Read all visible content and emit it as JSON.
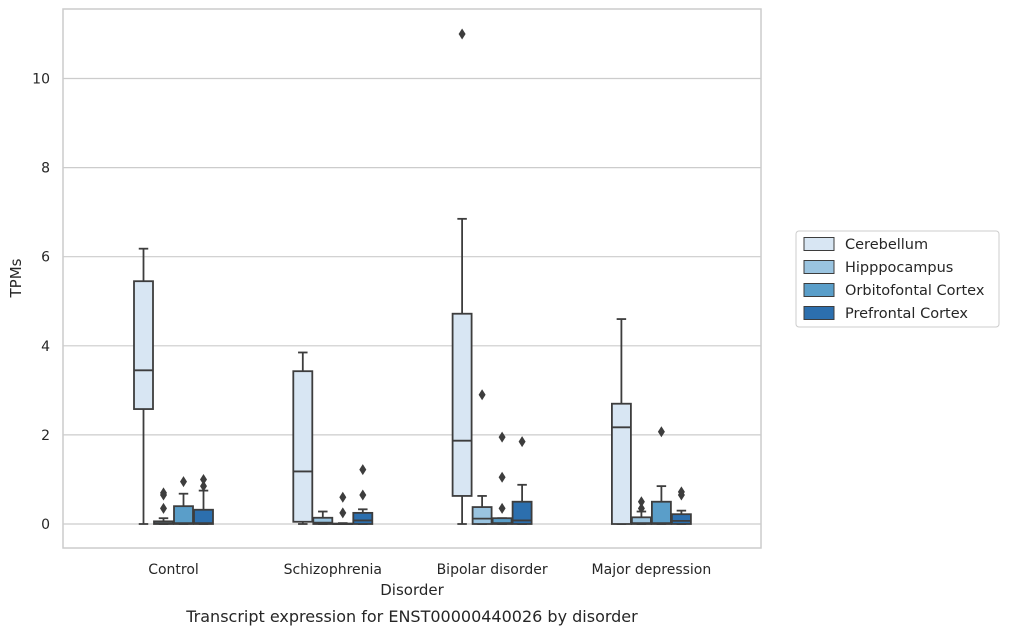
{
  "chart_data": {
    "type": "box",
    "xlabel": "Disorder",
    "ylabel": "TPMs",
    "caption": "Transcript expression for ENST00000440026 by disorder",
    "ylim": [
      -0.5,
      11.6
    ],
    "yticks": [
      0,
      2,
      4,
      6,
      8,
      10
    ],
    "grid": "horizontal",
    "legend_position": "right",
    "categories": [
      "Control",
      "Schizophrenia",
      "Bipolar disorder",
      "Major depression"
    ],
    "series": [
      {
        "name": "Cerebellum",
        "color": "#d8e6f3",
        "boxes": [
          {
            "whislo": 0.0,
            "q1": 2.58,
            "med": 3.45,
            "q3": 5.45,
            "whishi": 6.18,
            "fliers": []
          },
          {
            "whislo": 0.0,
            "q1": 0.05,
            "med": 1.18,
            "q3": 3.43,
            "whishi": 3.85,
            "fliers": []
          },
          {
            "whislo": 0.0,
            "q1": 0.63,
            "med": 1.87,
            "q3": 4.72,
            "whishi": 6.85,
            "fliers": [
              11.0
            ]
          },
          {
            "whislo": 0.0,
            "q1": 0.0,
            "med": 2.17,
            "q3": 2.7,
            "whishi": 4.6,
            "fliers": []
          }
        ]
      },
      {
        "name": "Hipppocampus",
        "color": "#9ac4e0",
        "boxes": [
          {
            "whislo": 0.0,
            "q1": 0.0,
            "med": 0.02,
            "q3": 0.06,
            "whishi": 0.13,
            "fliers": [
              0.35,
              0.65,
              0.7
            ]
          },
          {
            "whislo": 0.0,
            "q1": 0.0,
            "med": 0.03,
            "q3": 0.14,
            "whishi": 0.28,
            "fliers": []
          },
          {
            "whislo": 0.0,
            "q1": 0.0,
            "med": 0.12,
            "q3": 0.38,
            "whishi": 0.63,
            "fliers": [
              2.9
            ]
          },
          {
            "whislo": 0.0,
            "q1": 0.0,
            "med": 0.02,
            "q3": 0.15,
            "whishi": 0.28,
            "fliers": [
              0.35,
              0.5
            ]
          }
        ]
      },
      {
        "name": "Orbitofontal Cortex",
        "color": "#5a9ec9",
        "boxes": [
          {
            "whislo": 0.0,
            "q1": 0.0,
            "med": 0.02,
            "q3": 0.4,
            "whishi": 0.68,
            "fliers": [
              0.95
            ]
          },
          {
            "whislo": 0.0,
            "q1": 0.0,
            "med": 0.0,
            "q3": 0.01,
            "whishi": 0.02,
            "fliers": [
              0.25,
              0.6
            ]
          },
          {
            "whislo": 0.0,
            "q1": 0.0,
            "med": 0.02,
            "q3": 0.13,
            "whishi": 0.13,
            "fliers": [
              0.35,
              1.05,
              1.95
            ]
          },
          {
            "whislo": 0.0,
            "q1": 0.0,
            "med": 0.02,
            "q3": 0.5,
            "whishi": 0.85,
            "fliers": [
              2.07
            ]
          }
        ]
      },
      {
        "name": "Prefrontal Cortex",
        "color": "#2c6fae",
        "boxes": [
          {
            "whislo": 0.0,
            "q1": 0.0,
            "med": 0.02,
            "q3": 0.32,
            "whishi": 0.75,
            "fliers": [
              0.85,
              1.0
            ]
          },
          {
            "whislo": 0.0,
            "q1": 0.0,
            "med": 0.08,
            "q3": 0.25,
            "whishi": 0.33,
            "fliers": [
              0.65,
              1.22
            ]
          },
          {
            "whislo": 0.0,
            "q1": 0.0,
            "med": 0.08,
            "q3": 0.5,
            "whishi": 0.88,
            "fliers": [
              1.85
            ]
          },
          {
            "whislo": 0.0,
            "q1": 0.0,
            "med": 0.07,
            "q3": 0.22,
            "whishi": 0.3,
            "fliers": [
              0.65,
              0.72
            ]
          }
        ]
      }
    ]
  }
}
